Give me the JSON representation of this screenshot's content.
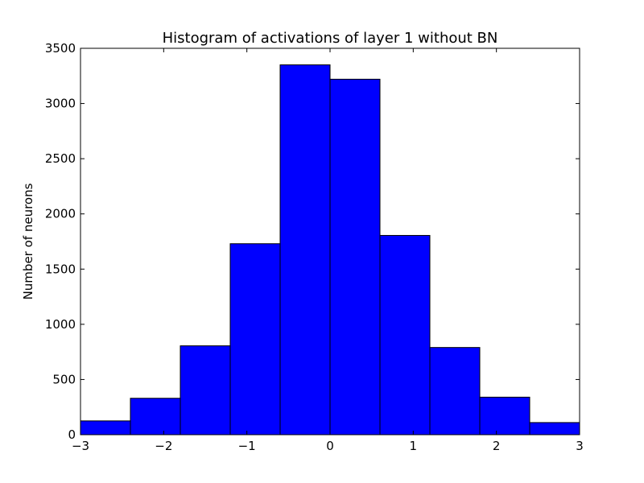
{
  "chart_data": {
    "type": "bar",
    "title": "Histogram of activations of layer 1  without BN",
    "xlabel": "",
    "ylabel": "Number of neurons",
    "bins": [
      {
        "x0": -3.0,
        "x1": -2.4,
        "value": 125
      },
      {
        "x0": -2.4,
        "x1": -1.8,
        "value": 330
      },
      {
        "x0": -1.8,
        "x1": -1.2,
        "value": 805
      },
      {
        "x0": -1.2,
        "x1": -0.6,
        "value": 1730
      },
      {
        "x0": -0.6,
        "x1": 0.0,
        "value": 3350
      },
      {
        "x0": 0.0,
        "x1": 0.6,
        "value": 3220
      },
      {
        "x0": 0.6,
        "x1": 1.2,
        "value": 1805
      },
      {
        "x0": 1.2,
        "x1": 1.8,
        "value": 790
      },
      {
        "x0": 1.8,
        "x1": 2.4,
        "value": 340
      },
      {
        "x0": 2.4,
        "x1": 3.0,
        "value": 110
      }
    ],
    "xlim": [
      -3,
      3
    ],
    "ylim": [
      0,
      3500
    ],
    "x_ticks": [
      -3,
      -2,
      -1,
      0,
      1,
      2,
      3
    ],
    "x_tick_labels": [
      "−3",
      "−2",
      "−1",
      "0",
      "1",
      "2",
      "3"
    ],
    "y_ticks": [
      0,
      500,
      1000,
      1500,
      2000,
      2500,
      3000,
      3500
    ],
    "y_tick_labels": [
      "0",
      "500",
      "1000",
      "1500",
      "2000",
      "2500",
      "3000",
      "3500"
    ],
    "grid": false,
    "legend": "none",
    "bar_color": "#0000ff",
    "edge_color": "#000000"
  }
}
